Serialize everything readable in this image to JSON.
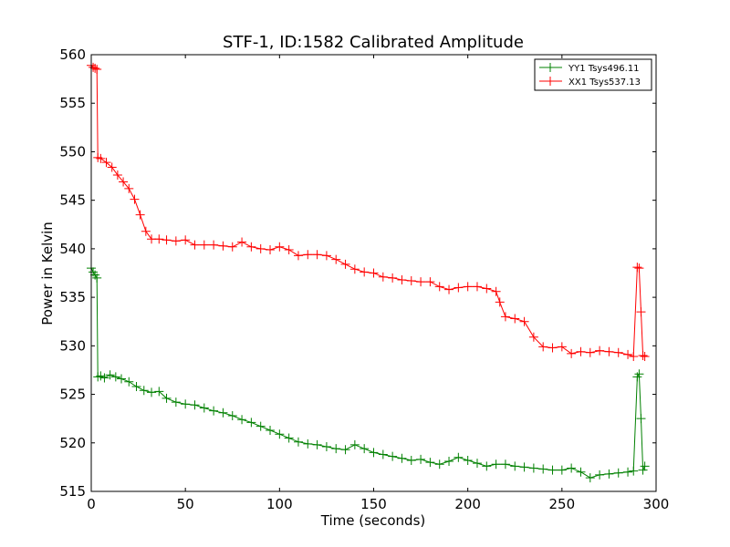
{
  "chart_data": {
    "type": "line",
    "title": "STF-1, ID:1582 Calibrated Amplitude",
    "xlabel": "Time (seconds)",
    "ylabel": "Power in Kelvin",
    "xlim": [
      0,
      300
    ],
    "ylim": [
      515,
      560
    ],
    "xticks": [
      0,
      50,
      100,
      150,
      200,
      250,
      300
    ],
    "yticks": [
      515,
      520,
      525,
      530,
      535,
      540,
      545,
      550,
      555,
      560
    ],
    "grid": false,
    "legend_position": "top-right",
    "marker": "+",
    "series": [
      {
        "name": "YY1 Tsys496.11",
        "color": "#008000",
        "points": [
          [
            0,
            538.0
          ],
          [
            1,
            537.6
          ],
          [
            2,
            537.3
          ],
          [
            3,
            537.0
          ],
          [
            3.5,
            526.8
          ],
          [
            5,
            526.9
          ],
          [
            7,
            526.7
          ],
          [
            10,
            527.0
          ],
          [
            13,
            526.8
          ],
          [
            16,
            526.6
          ],
          [
            20,
            526.3
          ],
          [
            24,
            525.8
          ],
          [
            28,
            525.4
          ],
          [
            32,
            525.2
          ],
          [
            36,
            525.3
          ],
          [
            40,
            524.6
          ],
          [
            45,
            524.2
          ],
          [
            50,
            524.0
          ],
          [
            55,
            523.9
          ],
          [
            60,
            523.6
          ],
          [
            65,
            523.3
          ],
          [
            70,
            523.1
          ],
          [
            75,
            522.8
          ],
          [
            80,
            522.4
          ],
          [
            85,
            522.1
          ],
          [
            90,
            521.7
          ],
          [
            95,
            521.3
          ],
          [
            100,
            520.9
          ],
          [
            105,
            520.5
          ],
          [
            110,
            520.1
          ],
          [
            115,
            519.9
          ],
          [
            120,
            519.8
          ],
          [
            125,
            519.6
          ],
          [
            130,
            519.4
          ],
          [
            135,
            519.3
          ],
          [
            140,
            519.8
          ],
          [
            145,
            519.4
          ],
          [
            150,
            519.0
          ],
          [
            155,
            518.8
          ],
          [
            160,
            518.6
          ],
          [
            165,
            518.4
          ],
          [
            170,
            518.2
          ],
          [
            175,
            518.3
          ],
          [
            180,
            518.0
          ],
          [
            185,
            517.8
          ],
          [
            190,
            518.1
          ],
          [
            195,
            518.5
          ],
          [
            200,
            518.2
          ],
          [
            205,
            517.9
          ],
          [
            210,
            517.6
          ],
          [
            215,
            517.8
          ],
          [
            220,
            517.8
          ],
          [
            225,
            517.6
          ],
          [
            230,
            517.5
          ],
          [
            235,
            517.4
          ],
          [
            240,
            517.3
          ],
          [
            245,
            517.2
          ],
          [
            250,
            517.2
          ],
          [
            255,
            517.4
          ],
          [
            260,
            517.0
          ],
          [
            265,
            516.4
          ],
          [
            270,
            516.7
          ],
          [
            275,
            516.8
          ],
          [
            280,
            516.9
          ],
          [
            285,
            517.0
          ],
          [
            288,
            517.1
          ],
          [
            290,
            526.8
          ],
          [
            291,
            527.1
          ],
          [
            292,
            522.5
          ],
          [
            293,
            517.2
          ],
          [
            294,
            517.6
          ]
        ]
      },
      {
        "name": "XX1 Tsys537.13",
        "color": "#ff0000",
        "points": [
          [
            0,
            558.9
          ],
          [
            1,
            558.7
          ],
          [
            2,
            558.6
          ],
          [
            3,
            558.5
          ],
          [
            3.5,
            549.4
          ],
          [
            5,
            549.3
          ],
          [
            8,
            548.9
          ],
          [
            11,
            548.4
          ],
          [
            14,
            547.6
          ],
          [
            17,
            546.9
          ],
          [
            20,
            546.2
          ],
          [
            23,
            545.1
          ],
          [
            26,
            543.5
          ],
          [
            29,
            541.8
          ],
          [
            32,
            541.0
          ],
          [
            36,
            541.0
          ],
          [
            40,
            540.9
          ],
          [
            45,
            540.8
          ],
          [
            50,
            540.9
          ],
          [
            55,
            540.4
          ],
          [
            60,
            540.4
          ],
          [
            65,
            540.4
          ],
          [
            70,
            540.3
          ],
          [
            75,
            540.2
          ],
          [
            80,
            540.7
          ],
          [
            85,
            540.2
          ],
          [
            90,
            540.0
          ],
          [
            95,
            539.9
          ],
          [
            100,
            540.2
          ],
          [
            105,
            539.9
          ],
          [
            110,
            539.3
          ],
          [
            115,
            539.4
          ],
          [
            120,
            539.4
          ],
          [
            125,
            539.3
          ],
          [
            130,
            538.9
          ],
          [
            135,
            538.4
          ],
          [
            140,
            537.9
          ],
          [
            145,
            537.6
          ],
          [
            150,
            537.5
          ],
          [
            155,
            537.1
          ],
          [
            160,
            537.0
          ],
          [
            165,
            536.8
          ],
          [
            170,
            536.7
          ],
          [
            175,
            536.6
          ],
          [
            180,
            536.6
          ],
          [
            185,
            536.1
          ],
          [
            190,
            535.8
          ],
          [
            195,
            536.0
          ],
          [
            200,
            536.1
          ],
          [
            205,
            536.1
          ],
          [
            210,
            535.9
          ],
          [
            215,
            535.6
          ],
          [
            217,
            534.5
          ],
          [
            220,
            533.0
          ],
          [
            225,
            532.8
          ],
          [
            230,
            532.5
          ],
          [
            235,
            530.9
          ],
          [
            240,
            529.9
          ],
          [
            245,
            529.8
          ],
          [
            250,
            529.9
          ],
          [
            255,
            529.2
          ],
          [
            260,
            529.4
          ],
          [
            265,
            529.3
          ],
          [
            270,
            529.5
          ],
          [
            275,
            529.4
          ],
          [
            280,
            529.3
          ],
          [
            285,
            529.1
          ],
          [
            288,
            528.9
          ],
          [
            290,
            538.1
          ],
          [
            291,
            538.0
          ],
          [
            292,
            533.5
          ],
          [
            293,
            529.0
          ],
          [
            294,
            528.9
          ]
        ]
      }
    ]
  }
}
